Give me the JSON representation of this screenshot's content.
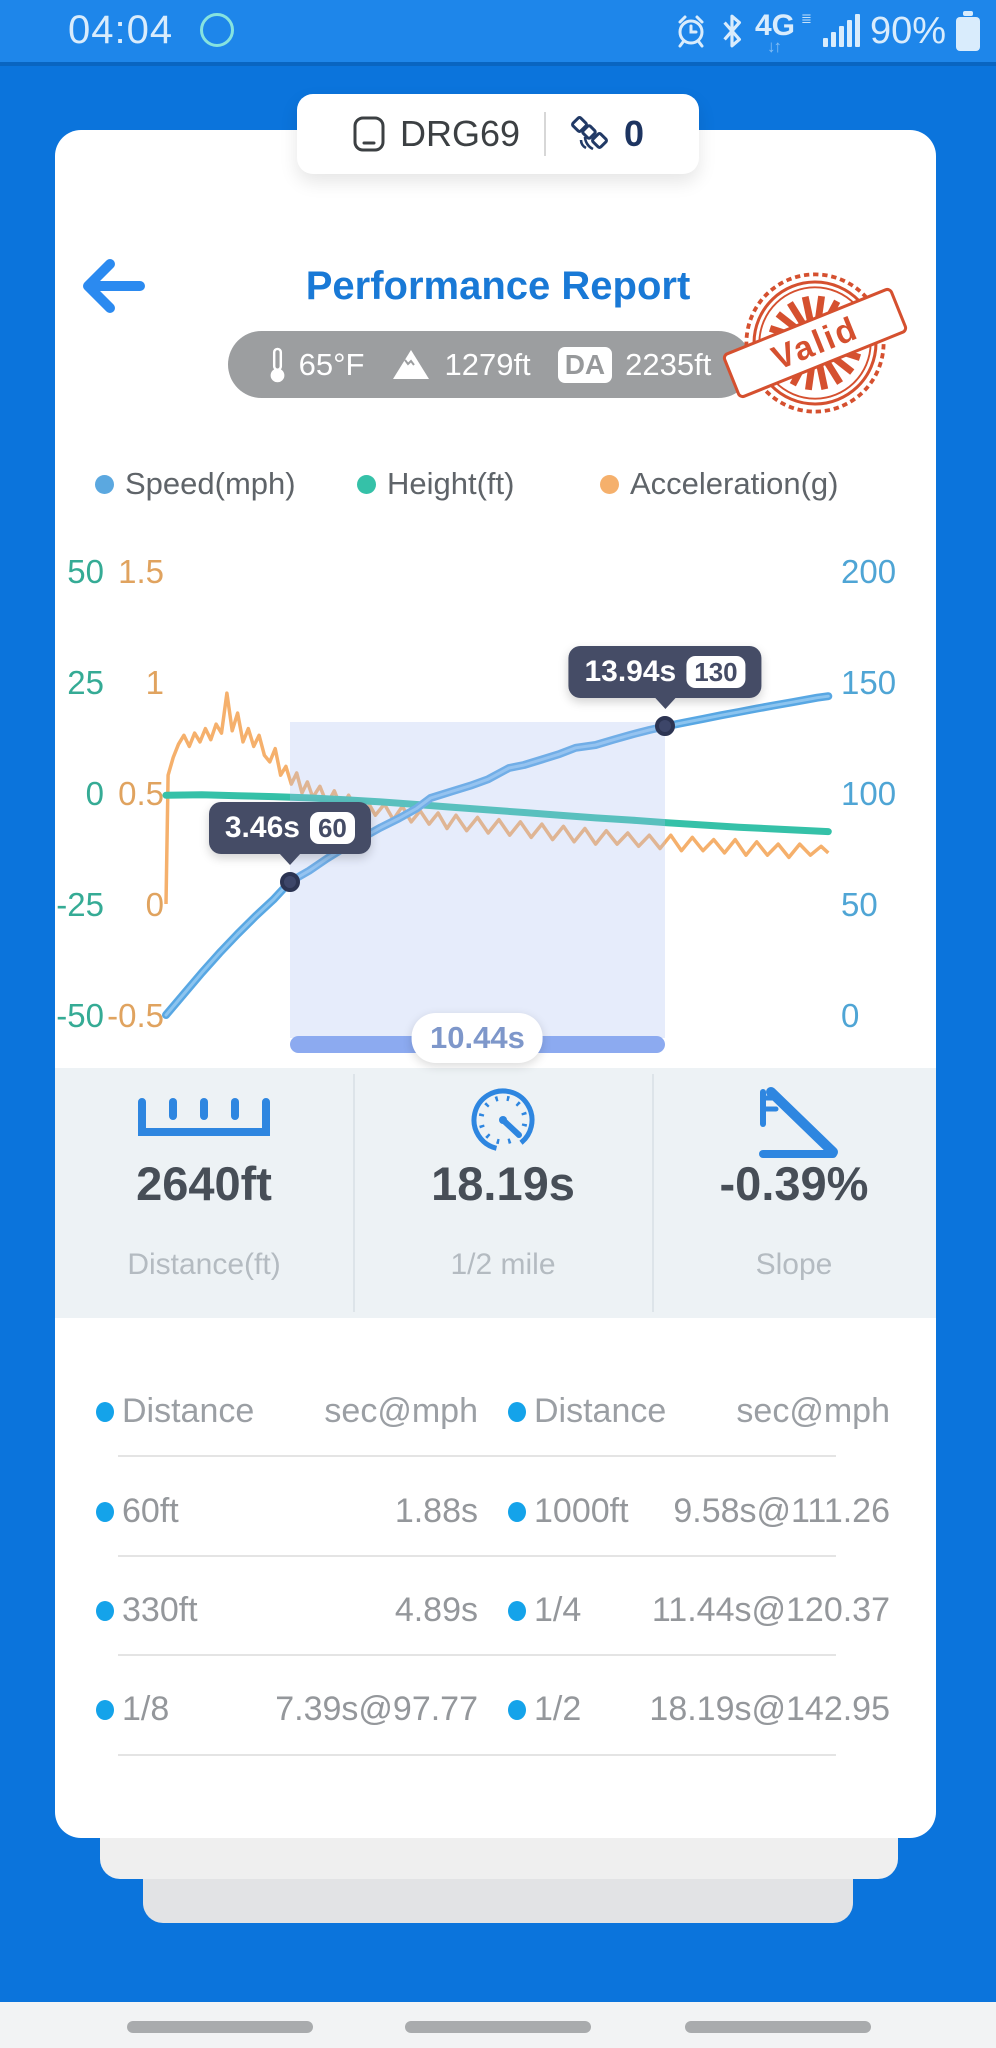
{
  "status_bar": {
    "time": "04:04",
    "network_label": "4G",
    "battery_text": "90%"
  },
  "device_chip": {
    "name": "DRG69",
    "satellite_count": "0"
  },
  "header": {
    "title": "Performance Report",
    "stamp_text": "Valid"
  },
  "conditions": {
    "temperature": "65°F",
    "elevation": "1279ft",
    "da_label": "DA",
    "density_altitude": "2235ft"
  },
  "chart_data": {
    "type": "line",
    "x_unit": "seconds",
    "x_range": [
      0,
      18.5
    ],
    "grid": true,
    "legend_position": "top",
    "axes": {
      "left": {
        "name": "Height(ft)",
        "ticks": [
          50,
          25,
          0,
          -25,
          -50
        ],
        "range": [
          -50,
          50
        ],
        "color": "#35ab95"
      },
      "g": {
        "name": "Acceleration(g)",
        "ticks": [
          1.5,
          1,
          0.5,
          0,
          -0.5
        ],
        "range": [
          -0.5,
          1.5
        ],
        "color": "#e0a35f"
      },
      "right": {
        "name": "Speed(mph)",
        "ticks": [
          200,
          150,
          100,
          50,
          0
        ],
        "range": [
          0,
          200
        ],
        "color": "#4fa5d5"
      }
    },
    "series": [
      {
        "name": "Speed(mph)",
        "axis": "right",
        "color": "#58a7e3",
        "points": [
          [
            0,
            0
          ],
          [
            0.5,
            9.5
          ],
          [
            1,
            19
          ],
          [
            1.5,
            28
          ],
          [
            2,
            36.5
          ],
          [
            2.5,
            44.5
          ],
          [
            3,
            52
          ],
          [
            3.46,
            60
          ],
          [
            4,
            65
          ],
          [
            4.5,
            70.5
          ],
          [
            5,
            75.5
          ],
          [
            5.5,
            80
          ],
          [
            6,
            84.5
          ],
          [
            6.5,
            88.5
          ],
          [
            7,
            93
          ],
          [
            7.39,
            97.77
          ],
          [
            8,
            100.8
          ],
          [
            8.5,
            103.3
          ],
          [
            9,
            106.2
          ],
          [
            9.58,
            111.26
          ],
          [
            10,
            112.6
          ],
          [
            10.5,
            115.1
          ],
          [
            11,
            117.6
          ],
          [
            11.44,
            120.37
          ],
          [
            12,
            121.6
          ],
          [
            12.5,
            124
          ],
          [
            13,
            126.3
          ],
          [
            13.5,
            128.4
          ],
          [
            13.94,
            130
          ],
          [
            14.5,
            131.8
          ],
          [
            15,
            133.4
          ],
          [
            15.5,
            135
          ],
          [
            16,
            136.5
          ],
          [
            16.5,
            138
          ],
          [
            17,
            139.5
          ],
          [
            17.5,
            140.9
          ],
          [
            18.19,
            142.95
          ],
          [
            18.5,
            143.6
          ]
        ]
      },
      {
        "name": "Height(ft)",
        "axis": "left",
        "color": "#35c1a8",
        "points": [
          [
            0,
            -0.5
          ],
          [
            1,
            -0.4
          ],
          [
            2,
            -0.6
          ],
          [
            3,
            -0.8
          ],
          [
            4,
            -1.1
          ],
          [
            5,
            -1.5
          ],
          [
            6,
            -2.0
          ],
          [
            7,
            -2.6
          ],
          [
            8,
            -3.2
          ],
          [
            9,
            -3.8
          ],
          [
            10,
            -4.4
          ],
          [
            11,
            -5.0
          ],
          [
            12,
            -5.6
          ],
          [
            13,
            -6.1
          ],
          [
            14,
            -6.7
          ],
          [
            15,
            -7.2
          ],
          [
            16,
            -7.7
          ],
          [
            17,
            -8.1
          ],
          [
            18,
            -8.5
          ],
          [
            18.5,
            -8.7
          ]
        ]
      },
      {
        "name": "Acceleration(g)",
        "axis": "g",
        "color": "#f5b06c",
        "points": [
          [
            0,
            0
          ],
          [
            0.06,
            0.58
          ],
          [
            0.2,
            0.66
          ],
          [
            0.35,
            0.72
          ],
          [
            0.5,
            0.76
          ],
          [
            0.65,
            0.71
          ],
          [
            0.8,
            0.77
          ],
          [
            0.95,
            0.73
          ],
          [
            1.1,
            0.79
          ],
          [
            1.25,
            0.74
          ],
          [
            1.4,
            0.81
          ],
          [
            1.55,
            0.77
          ],
          [
            1.7,
            0.95
          ],
          [
            1.85,
            0.78
          ],
          [
            2.0,
            0.86
          ],
          [
            2.15,
            0.73
          ],
          [
            2.3,
            0.79
          ],
          [
            2.45,
            0.71
          ],
          [
            2.6,
            0.76
          ],
          [
            2.75,
            0.67
          ],
          [
            2.9,
            0.64
          ],
          [
            3.05,
            0.7
          ],
          [
            3.2,
            0.58
          ],
          [
            3.35,
            0.62
          ],
          [
            3.5,
            0.54
          ],
          [
            3.65,
            0.59
          ],
          [
            3.8,
            0.5
          ],
          [
            3.95,
            0.55
          ],
          [
            4.1,
            0.48
          ],
          [
            4.3,
            0.53
          ],
          [
            4.5,
            0.45
          ],
          [
            4.7,
            0.51
          ],
          [
            4.9,
            0.43
          ],
          [
            5.1,
            0.49
          ],
          [
            5.35,
            0.42
          ],
          [
            5.6,
            0.47
          ],
          [
            5.85,
            0.4
          ],
          [
            6.1,
            0.45
          ],
          [
            6.35,
            0.38
          ],
          [
            6.6,
            0.44
          ],
          [
            6.85,
            0.37
          ],
          [
            7.1,
            0.42
          ],
          [
            7.35,
            0.36
          ],
          [
            7.6,
            0.41
          ],
          [
            7.85,
            0.34
          ],
          [
            8.1,
            0.4
          ],
          [
            8.4,
            0.33
          ],
          [
            8.7,
            0.39
          ],
          [
            9.0,
            0.32
          ],
          [
            9.3,
            0.38
          ],
          [
            9.6,
            0.31
          ],
          [
            9.9,
            0.37
          ],
          [
            10.2,
            0.3
          ],
          [
            10.5,
            0.36
          ],
          [
            10.8,
            0.29
          ],
          [
            11.1,
            0.35
          ],
          [
            11.4,
            0.28
          ],
          [
            11.7,
            0.34
          ],
          [
            12.0,
            0.27
          ],
          [
            12.3,
            0.33
          ],
          [
            12.6,
            0.27
          ],
          [
            12.9,
            0.32
          ],
          [
            13.2,
            0.26
          ],
          [
            13.5,
            0.31
          ],
          [
            13.8,
            0.25
          ],
          [
            14.1,
            0.31
          ],
          [
            14.4,
            0.24
          ],
          [
            14.7,
            0.3
          ],
          [
            15.0,
            0.24
          ],
          [
            15.3,
            0.29
          ],
          [
            15.6,
            0.23
          ],
          [
            15.9,
            0.29
          ],
          [
            16.2,
            0.22
          ],
          [
            16.5,
            0.28
          ],
          [
            16.8,
            0.22
          ],
          [
            17.1,
            0.27
          ],
          [
            17.4,
            0.21
          ],
          [
            17.7,
            0.27
          ],
          [
            18.0,
            0.22
          ],
          [
            18.3,
            0.26
          ],
          [
            18.5,
            0.23
          ]
        ]
      }
    ],
    "markers": [
      {
        "t": 3.46,
        "mph": 60,
        "time_label": "3.46s",
        "value_label": "60"
      },
      {
        "t": 13.94,
        "mph": 130,
        "time_label": "13.94s",
        "value_label": "130"
      }
    ],
    "selection": {
      "from": 3.46,
      "to": 13.94,
      "label": "10.44s"
    }
  },
  "stats": {
    "cards": [
      {
        "value": "2640ft",
        "label": "Distance(ft)",
        "icon": "ruler-icon"
      },
      {
        "value": "18.19s",
        "label": "1/2 mile",
        "icon": "speedometer-icon"
      },
      {
        "value": "-0.39%",
        "label": "Slope",
        "icon": "slope-icon"
      }
    ]
  },
  "table": {
    "headers": [
      "Distance",
      "sec@mph",
      "Distance",
      "sec@mph"
    ],
    "rows": [
      {
        "d1": "60ft",
        "v1": "1.88s",
        "d2": "1000ft",
        "v2": "9.58s@111.26"
      },
      {
        "d1": "330ft",
        "v1": "4.89s",
        "d2": "1/4",
        "v2": "11.44s@120.37"
      },
      {
        "d1": "1/8",
        "v1": "7.39s@97.77",
        "d2": "1/2",
        "v2": "18.19s@142.95"
      }
    ]
  },
  "colors": {
    "app_background": "#0b74dc",
    "accent_blue": "#1979d6",
    "speed": "#58a7e3",
    "height": "#35c1a8",
    "acceleration": "#f5b06c",
    "stamp_red": "#d5502f",
    "tooltip_bg": "#454c66"
  }
}
